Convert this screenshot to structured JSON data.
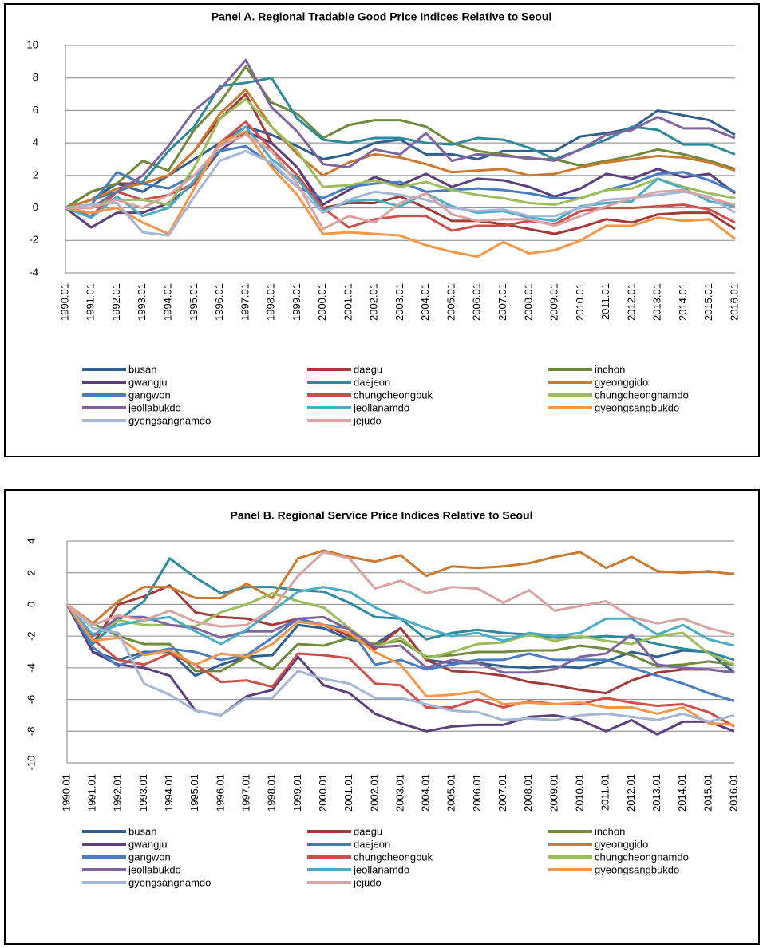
{
  "chart_data": [
    {
      "type": "line",
      "title": "Panel A. Regional Tradable Good Price Indices Relative to Seoul",
      "categories": [
        "1990.01",
        "1991.01",
        "1992.01",
        "1993.01",
        "1994.01",
        "1995.01",
        "1996.01",
        "1997.01",
        "1998.01",
        "1999.01",
        "2000.01",
        "2001.01",
        "2002.01",
        "2003.01",
        "2004.01",
        "2005.01",
        "2006.01",
        "2007.01",
        "2008.01",
        "2009.01",
        "2010.01",
        "2011.01",
        "2012.01",
        "2013.01",
        "2014.01",
        "2015.01",
        "2016.01"
      ],
      "ylim": [
        -4,
        10
      ],
      "yticks": [
        -4,
        -2,
        0,
        2,
        4,
        6,
        8,
        10
      ],
      "grid": true,
      "y_tick_rotation": 0,
      "series": [
        {
          "name": "busan",
          "color": "#2f5f8f",
          "values": [
            0,
            0.5,
            1.5,
            1,
            2,
            3,
            4,
            5,
            4.5,
            3.8,
            3,
            3.3,
            4,
            4.2,
            3.3,
            3.3,
            3,
            3.5,
            3.5,
            3.5,
            4.4,
            4.6,
            4.9,
            6,
            5.7,
            5.4,
            4.5
          ]
        },
        {
          "name": "daegu",
          "color": "#a33a37",
          "values": [
            0,
            1,
            1.5,
            1.5,
            2,
            3.5,
            5.5,
            7,
            4,
            2.5,
            0,
            0.3,
            0.3,
            0.7,
            0,
            -0.8,
            -0.8,
            -1,
            -1.3,
            -1.6,
            -1.2,
            -0.7,
            -0.9,
            -0.4,
            -0.3,
            -0.3,
            -1.3
          ]
        },
        {
          "name": "inchon",
          "color": "#6f8a3a",
          "values": [
            0,
            1,
            1.5,
            2.9,
            2.3,
            4.8,
            6.5,
            8.7,
            6.5,
            5.8,
            4.3,
            5.1,
            5.4,
            5.4,
            5,
            4,
            3.5,
            3.3,
            3,
            3,
            2.6,
            2.9,
            3.2,
            3.6,
            3.3,
            2.9,
            2.4
          ]
        },
        {
          "name": "gwangju",
          "color": "#5c3f7d",
          "values": [
            0,
            -1.2,
            -0.3,
            -0.3,
            0.3,
            1.5,
            3.5,
            4.7,
            4,
            2.5,
            0.2,
            1.1,
            1.9,
            1.4,
            2.1,
            1.3,
            1.8,
            1.7,
            1.3,
            0.7,
            1.2,
            2.1,
            1.8,
            2.4,
            1.9,
            2.1,
            0.9
          ]
        },
        {
          "name": "daejeon",
          "color": "#2d8a9c",
          "values": [
            0,
            0.5,
            1,
            1.6,
            3.5,
            5,
            7.5,
            7.7,
            8,
            5.5,
            4.2,
            4,
            4.3,
            4.3,
            4,
            3.9,
            4.3,
            4.2,
            3.7,
            3,
            3.6,
            4.2,
            5,
            4.8,
            3.9,
            3.9,
            3.3
          ]
        },
        {
          "name": "gyeonggido",
          "color": "#cc7a30",
          "values": [
            0,
            0.5,
            1.2,
            1.5,
            2,
            3.5,
            5.8,
            7.3,
            5,
            3.3,
            2,
            2.8,
            3.3,
            3.1,
            2.7,
            2.2,
            2.3,
            2.4,
            2,
            2.1,
            2.5,
            2.8,
            3,
            3.2,
            3.1,
            2.8,
            2.3
          ]
        },
        {
          "name": "gangwon",
          "color": "#4a7cc4",
          "values": [
            0,
            0.2,
            2.2,
            1.5,
            1.2,
            2,
            3.5,
            3.8,
            2.7,
            1.3,
            0.6,
            1.3,
            1.5,
            1.6,
            1,
            1.1,
            1.2,
            1.1,
            0.9,
            0.6,
            0.6,
            1.1,
            1.5,
            2.1,
            2.2,
            1.7,
            1
          ]
        },
        {
          "name": "chungcheongbuk",
          "color": "#cf4e4a",
          "values": [
            0,
            -0.5,
            1,
            0.5,
            0.8,
            1.5,
            4,
            5.3,
            3.6,
            2,
            0,
            -1.2,
            -0.7,
            -0.5,
            -0.5,
            -1.4,
            -1.1,
            -1.1,
            -0.8,
            -1,
            -0.2,
            0,
            0,
            0.1,
            0.2,
            -0.1,
            -0.9
          ]
        },
        {
          "name": "chungcheongnamdo",
          "color": "#9bbd5a",
          "values": [
            0,
            0.2,
            0.5,
            0.5,
            0.2,
            2.5,
            5.5,
            6.7,
            5,
            3.5,
            1.3,
            1.4,
            1.7,
            1.3,
            1.6,
            1.1,
            0.8,
            0.6,
            0.3,
            0.2,
            0.6,
            1.1,
            1.2,
            1.8,
            1.3,
            0.9,
            0.6
          ]
        },
        {
          "name": "jeollabukdo",
          "color": "#8064a2",
          "values": [
            0,
            0,
            1,
            2,
            3.8,
            6,
            7.3,
            9.1,
            6.2,
            4.7,
            2.7,
            2.5,
            3.6,
            3.3,
            4.6,
            2.9,
            3.3,
            3.2,
            3.1,
            2.9,
            3.6,
            4.5,
            4.8,
            5.6,
            4.9,
            4.9,
            4.3
          ]
        },
        {
          "name": "jeollanamdo",
          "color": "#4bacc6",
          "values": [
            0,
            -0.6,
            0.7,
            -0.5,
            0,
            1.7,
            3.8,
            5,
            3,
            1.8,
            -0.2,
            0.4,
            0.5,
            0.1,
            0.9,
            0.1,
            -0.3,
            -0.2,
            -0.6,
            -0.8,
            0.1,
            0.3,
            0.4,
            1.8,
            1.2,
            0.4,
            0.1
          ]
        },
        {
          "name": "gyeongsangbukdo",
          "color": "#f79646",
          "values": [
            0,
            -0.3,
            0,
            -0.9,
            -1.6,
            1.2,
            4,
            4.7,
            2.5,
            0.8,
            -1.6,
            -1.5,
            -1.6,
            -1.7,
            -2.3,
            -2.7,
            -3,
            -2.1,
            -2.8,
            -2.6,
            -2,
            -1.1,
            -1.1,
            -0.6,
            -0.8,
            -0.7,
            -1.9
          ]
        },
        {
          "name": "gyengsangnamdo",
          "color": "#a5b6d6",
          "values": [
            0,
            0.2,
            0.3,
            -1.5,
            -1.7,
            0.7,
            2.9,
            3.5,
            2.8,
            1.3,
            -0.3,
            0.5,
            1,
            0.8,
            0.5,
            0,
            -0.2,
            -0.1,
            -0.5,
            -0.5,
            0,
            0.5,
            0.6,
            0.8,
            1,
            0.7,
            -0.3
          ]
        },
        {
          "name": "jejudo",
          "color": "#d9a3a2",
          "values": [
            0,
            0,
            0.5,
            0,
            0.8,
            2,
            3.8,
            4.5,
            3.5,
            1.5,
            -1.3,
            -0.5,
            -0.9,
            0.3,
            0.9,
            -0.4,
            -0.8,
            -0.7,
            -0.7,
            -1.1,
            -0.5,
            0.1,
            0.6,
            1,
            1.1,
            0.6,
            0.2
          ]
        }
      ]
    },
    {
      "type": "line",
      "title": "Panel B. Regional Service Price Indices Relative to Seoul",
      "categories": [
        "1990.01",
        "1991.01",
        "1992.01",
        "1993.01",
        "1994.01",
        "1995.01",
        "1996.01",
        "1997.01",
        "1998.01",
        "1999.01",
        "2000.01",
        "2001.01",
        "2002.01",
        "2003.01",
        "2004.01",
        "2005.01",
        "2006.01",
        "2007.01",
        "2008.01",
        "2009.01",
        "2010.01",
        "2011.01",
        "2012.01",
        "2013.01",
        "2014.01",
        "2015.01",
        "2016.01"
      ],
      "ylim": [
        -10,
        4
      ],
      "yticks": [
        -10,
        -8,
        -6,
        -4,
        -2,
        0,
        2,
        4
      ],
      "grid": true,
      "y_tick_rotation": -90,
      "series": [
        {
          "name": "busan",
          "color": "#2f5f8f",
          "values": [
            0,
            -3,
            -3.5,
            -3,
            -3,
            -4.5,
            -3.8,
            -3.3,
            -3.2,
            -1.3,
            -1.5,
            -2.2,
            -2.5,
            -1.5,
            -3.5,
            -3.7,
            -3.7,
            -3.9,
            -4,
            -3.9,
            -4,
            -3.6,
            -3,
            -3.3,
            -2.9,
            -3,
            -4.3
          ]
        },
        {
          "name": "daegu",
          "color": "#a33a37",
          "values": [
            0,
            -2.5,
            0,
            0.5,
            1.2,
            -0.5,
            -0.8,
            -0.9,
            -1.3,
            -0.9,
            -1.3,
            -2,
            -2.8,
            -1.5,
            -3.5,
            -4.2,
            -4.3,
            -4.5,
            -4.9,
            -5.1,
            -5.4,
            -5.6,
            -4.8,
            -4.3,
            -4.1,
            -4.1,
            -4.3
          ]
        },
        {
          "name": "inchon",
          "color": "#6f8a3a",
          "values": [
            0,
            -1.2,
            -2,
            -2.5,
            -2.5,
            -4.2,
            -4.2,
            -3.3,
            -4.1,
            -2.5,
            -2.6,
            -2.1,
            -2.5,
            -2.3,
            -3.3,
            -3.2,
            -3,
            -3,
            -2.9,
            -2.9,
            -2.6,
            -2.8,
            -3.2,
            -3.9,
            -3.8,
            -3.6,
            -3.8
          ]
        },
        {
          "name": "gwangju",
          "color": "#5c3f7d",
          "values": [
            0,
            -3,
            -3.8,
            -4,
            -4.5,
            -6.7,
            -7,
            -5.8,
            -5.4,
            -3.3,
            -5.1,
            -5.6,
            -6.9,
            -7.5,
            -8,
            -7.7,
            -7.6,
            -7.6,
            -7.1,
            -7,
            -7.3,
            -8,
            -7.3,
            -8.2,
            -7.4,
            -7.4,
            -8
          ]
        },
        {
          "name": "daejeon",
          "color": "#2d8a9c",
          "values": [
            0,
            -2.5,
            -1,
            0.2,
            2.9,
            1.7,
            0.7,
            1.1,
            1.1,
            0.9,
            0.8,
            0.1,
            -0.8,
            -0.9,
            -2.2,
            -1.8,
            -1.6,
            -1.8,
            -1.9,
            -2.1,
            -2.1,
            -2,
            -2.1,
            -2.5,
            -2.8,
            -3,
            -3.5
          ]
        },
        {
          "name": "gyeonggido",
          "color": "#cc7a30",
          "values": [
            0,
            -1.2,
            0.2,
            1.1,
            1.1,
            0.4,
            0.4,
            1.3,
            0.4,
            2.9,
            3.4,
            3,
            2.7,
            3.1,
            1.8,
            2.4,
            2.3,
            2.4,
            2.6,
            3,
            3.3,
            2.3,
            3,
            2.1,
            2,
            2.1,
            1.9
          ]
        },
        {
          "name": "gangwon",
          "color": "#4a7cc4",
          "values": [
            0,
            -2.7,
            -3.9,
            -3.1,
            -2.8,
            -3,
            -3.5,
            -3.2,
            -2.1,
            -0.9,
            -1.3,
            -1.5,
            -3.8,
            -3.5,
            -4.1,
            -3.8,
            -3.5,
            -3.5,
            -3.1,
            -3.5,
            -3.5,
            -3.5,
            -4,
            -4.5,
            -5,
            -5.6,
            -6.1
          ]
        },
        {
          "name": "chungcheongbuk",
          "color": "#cf4e4a",
          "values": [
            0,
            -2.2,
            -3.5,
            -3.8,
            -3.1,
            -3.8,
            -4.9,
            -4.8,
            -5.2,
            -3.1,
            -3.2,
            -3.4,
            -5,
            -5.1,
            -6.5,
            -6.5,
            -6,
            -6.5,
            -6.1,
            -6.3,
            -6.3,
            -5.9,
            -6.2,
            -6.4,
            -6.3,
            -6.8,
            -7.7
          ]
        },
        {
          "name": "chungcheongnamdo",
          "color": "#9bbd5a",
          "values": [
            0,
            -2,
            -1,
            -1.3,
            -1.3,
            -1.4,
            -0.5,
            0,
            0.7,
            0.2,
            -0.2,
            -1.5,
            -2.7,
            -2.1,
            -3.4,
            -3,
            -2.5,
            -2.4,
            -1.9,
            -2.3,
            -2,
            -2.3,
            -2.5,
            -2,
            -1.8,
            -3.1,
            -3.8
          ]
        },
        {
          "name": "jeollabukdo",
          "color": "#8064a2",
          "values": [
            0,
            -2,
            -0.8,
            -0.8,
            -1.3,
            -1.5,
            -2.1,
            -1.7,
            -1.7,
            -0.9,
            -0.8,
            -1.6,
            -2.7,
            -2.6,
            -4,
            -3.5,
            -3.7,
            -4.3,
            -4.3,
            -4.1,
            -3.3,
            -3.1,
            -1.9,
            -3.8,
            -4,
            -4.1,
            -4.3
          ]
        },
        {
          "name": "jeollanamdo",
          "color": "#4bacc6",
          "values": [
            0,
            -1.9,
            -1.3,
            -1,
            -0.8,
            -1.7,
            -2.5,
            -1.6,
            -0.4,
            0.8,
            1.1,
            0.8,
            -0.2,
            -0.9,
            -1.5,
            -2,
            -1.8,
            -2.3,
            -1.8,
            -2,
            -1.8,
            -0.9,
            -0.9,
            -1.9,
            -1.3,
            -2.2,
            -2.6
          ]
        },
        {
          "name": "gyeongsangbukdo",
          "color": "#f79646",
          "values": [
            0,
            -2.3,
            -2.1,
            -3.2,
            -2.9,
            -3.8,
            -3.1,
            -3.3,
            -2.5,
            -1.1,
            -1.3,
            -1.8,
            -3,
            -3.8,
            -5.8,
            -5.7,
            -5.5,
            -6.3,
            -6.2,
            -6.3,
            -6.2,
            -6.5,
            -6.5,
            -6.9,
            -6.5,
            -7.5,
            -7.6
          ]
        },
        {
          "name": "gyengsangnamdo",
          "color": "#a5b6d6",
          "values": [
            0,
            -1.5,
            -1.8,
            -5,
            -5.7,
            -6.7,
            -7,
            -5.9,
            -5.9,
            -4.2,
            -4.7,
            -5,
            -5.9,
            -5.9,
            -6.3,
            -6.7,
            -6.8,
            -7.3,
            -7.2,
            -7.3,
            -7,
            -6.9,
            -7.1,
            -7.3,
            -6.9,
            -7.4,
            -7
          ]
        },
        {
          "name": "jejudo",
          "color": "#d9a3a2",
          "values": [
            0,
            -1.3,
            -0.7,
            -1,
            -0.4,
            -1.1,
            -1.4,
            -1.3,
            -0.3,
            1.8,
            3.3,
            2.9,
            1,
            1.5,
            0.7,
            1.1,
            1,
            0.1,
            0.9,
            -0.4,
            -0.1,
            0.2,
            -0.8,
            -1.2,
            -0.9,
            -1.5,
            -1.9
          ]
        }
      ]
    }
  ]
}
